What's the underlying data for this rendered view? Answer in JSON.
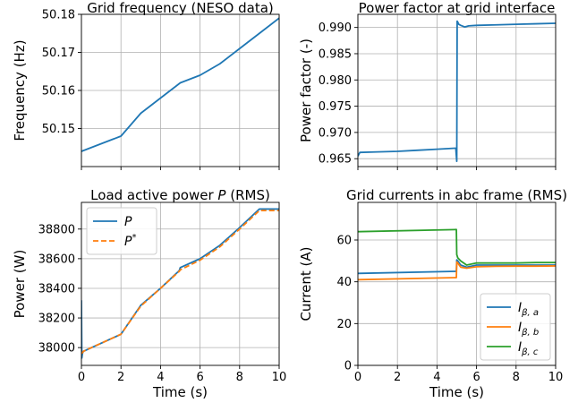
{
  "colors": {
    "blue": "#1f77b4",
    "orange": "#ff7f0e",
    "green": "#2ca02c",
    "grid": "#b0b0b0"
  },
  "chart_data": [
    {
      "id": "freq",
      "type": "line",
      "title": "Grid frequency (NESO data)",
      "xlabel": "",
      "ylabel": "Frequency (Hz)",
      "xlim": [
        0,
        10
      ],
      "ylim": [
        50.14,
        50.18
      ],
      "xticks": [
        0,
        2,
        4,
        6,
        8,
        10
      ],
      "yticks": [
        50.15,
        50.16,
        50.17,
        50.18
      ],
      "ytick_labels": [
        "50.15",
        "50.16",
        "50.17",
        "50.18"
      ],
      "show_xticklabels": false,
      "grid": true,
      "legend": null,
      "series": [
        {
          "name": "frequency",
          "color": "#1f77b4",
          "dash": "",
          "x": [
            0,
            2,
            3,
            4,
            5,
            6,
            7,
            8,
            9,
            10
          ],
          "y": [
            50.144,
            50.148,
            50.154,
            50.158,
            50.162,
            50.164,
            50.167,
            50.171,
            50.175,
            50.179
          ]
        }
      ]
    },
    {
      "id": "pf",
      "type": "line",
      "title": "Power factor at grid interface",
      "xlabel": "",
      "ylabel": "Power factor (-)",
      "xlim": [
        0,
        10
      ],
      "ylim": [
        0.9635,
        0.9925
      ],
      "xticks": [
        0,
        2,
        4,
        6,
        8,
        10
      ],
      "yticks": [
        0.965,
        0.97,
        0.975,
        0.98,
        0.985,
        0.99
      ],
      "ytick_labels": [
        "0.965",
        "0.970",
        "0.975",
        "0.980",
        "0.985",
        "0.990"
      ],
      "show_xticklabels": false,
      "grid": true,
      "legend": null,
      "series": [
        {
          "name": "power factor",
          "color": "#1f77b4",
          "dash": "",
          "x": [
            0,
            0.1,
            1,
            2,
            3,
            4,
            4.9,
            4.95,
            5.0,
            5.02,
            5.05,
            5.1,
            5.2,
            5.4,
            5.6,
            6,
            7,
            8,
            9,
            10
          ],
          "y": [
            0.9655,
            0.9662,
            0.9663,
            0.9664,
            0.9666,
            0.9668,
            0.967,
            0.967,
            0.9645,
            0.9912,
            0.991,
            0.9906,
            0.9904,
            0.9901,
            0.9903,
            0.9904,
            0.9905,
            0.9906,
            0.9907,
            0.9908
          ]
        }
      ]
    },
    {
      "id": "power",
      "type": "line",
      "title": "Load active power P (RMS)",
      "title_parts": [
        "Load active power ",
        "P",
        " (RMS)"
      ],
      "xlabel": "Time (s)",
      "ylabel": "Power (W)",
      "xlim": [
        0,
        10
      ],
      "ylim": [
        37880,
        38980
      ],
      "xticks": [
        0,
        2,
        4,
        6,
        8,
        10
      ],
      "xtick_labels": [
        "0",
        "2",
        "4",
        "6",
        "8",
        "10"
      ],
      "yticks": [
        38000,
        38200,
        38400,
        38600,
        38800
      ],
      "ytick_labels": [
        "38000",
        "38200",
        "38400",
        "38600",
        "38800"
      ],
      "show_xticklabels": true,
      "grid": true,
      "legend": "top-left",
      "series": [
        {
          "name": "P",
          "label_main": "P",
          "label_sup": "",
          "color": "#1f77b4",
          "dash": "",
          "x": [
            0,
            0.02,
            0.05,
            0.1,
            2,
            3,
            4,
            4.95,
            5.0,
            6,
            7,
            8,
            9,
            10
          ],
          "y": [
            38320,
            37930,
            37960,
            37975,
            38090,
            38285,
            38400,
            38520,
            38540,
            38600,
            38690,
            38810,
            38935,
            38935
          ]
        },
        {
          "name": "P*",
          "label_main": "P",
          "label_sup": "*",
          "color": "#ff7f0e",
          "dash": "6,3",
          "x": [
            0,
            0.05,
            0.1,
            2,
            3,
            4,
            4.95,
            5.0,
            6,
            7,
            8,
            9,
            10
          ],
          "y": [
            37960,
            37965,
            37975,
            38090,
            38280,
            38400,
            38515,
            38525,
            38590,
            38680,
            38800,
            38925,
            38925
          ]
        }
      ]
    },
    {
      "id": "currents",
      "type": "line",
      "title": "Grid currents in abc frame (RMS)",
      "xlabel": "Time (s)",
      "ylabel": "Current (A)",
      "xlim": [
        0,
        10
      ],
      "ylim": [
        0,
        78
      ],
      "xticks": [
        0,
        2,
        4,
        6,
        8,
        10
      ],
      "xtick_labels": [
        "0",
        "2",
        "4",
        "6",
        "8",
        "10"
      ],
      "yticks": [
        0,
        20,
        40,
        60
      ],
      "ytick_labels": [
        "0",
        "20",
        "40",
        "60"
      ],
      "show_xticklabels": true,
      "grid": true,
      "legend": "bottom-right",
      "series": [
        {
          "name": "I_beta,a",
          "label_main": "I",
          "label_sub": "β, a",
          "color": "#1f77b4",
          "dash": "",
          "x": [
            0,
            4.98,
            5.0,
            5.05,
            5.2,
            5.5,
            6,
            7,
            8,
            9,
            10
          ],
          "y": [
            44,
            45,
            50.5,
            50,
            48,
            47,
            48,
            48,
            48,
            48,
            48
          ]
        },
        {
          "name": "I_beta,b",
          "label_main": "I",
          "label_sub": "β, b",
          "color": "#ff7f0e",
          "dash": "",
          "x": [
            0,
            4.98,
            5.0,
            5.05,
            5.2,
            5.5,
            6,
            7,
            8,
            9,
            10
          ],
          "y": [
            41,
            42,
            49.5,
            49,
            47,
            46.5,
            47.2,
            47.4,
            47.5,
            47.5,
            47.6
          ]
        },
        {
          "name": "I_beta,c",
          "label_main": "I",
          "label_sub": "β, c",
          "color": "#2ca02c",
          "dash": "",
          "x": [
            0,
            4.98,
            5.0,
            5.05,
            5.2,
            5.5,
            6,
            7,
            8,
            9,
            10
          ],
          "y": [
            64,
            65,
            53,
            51.5,
            50,
            48,
            49,
            49,
            49,
            49.2,
            49.2
          ]
        }
      ]
    }
  ]
}
